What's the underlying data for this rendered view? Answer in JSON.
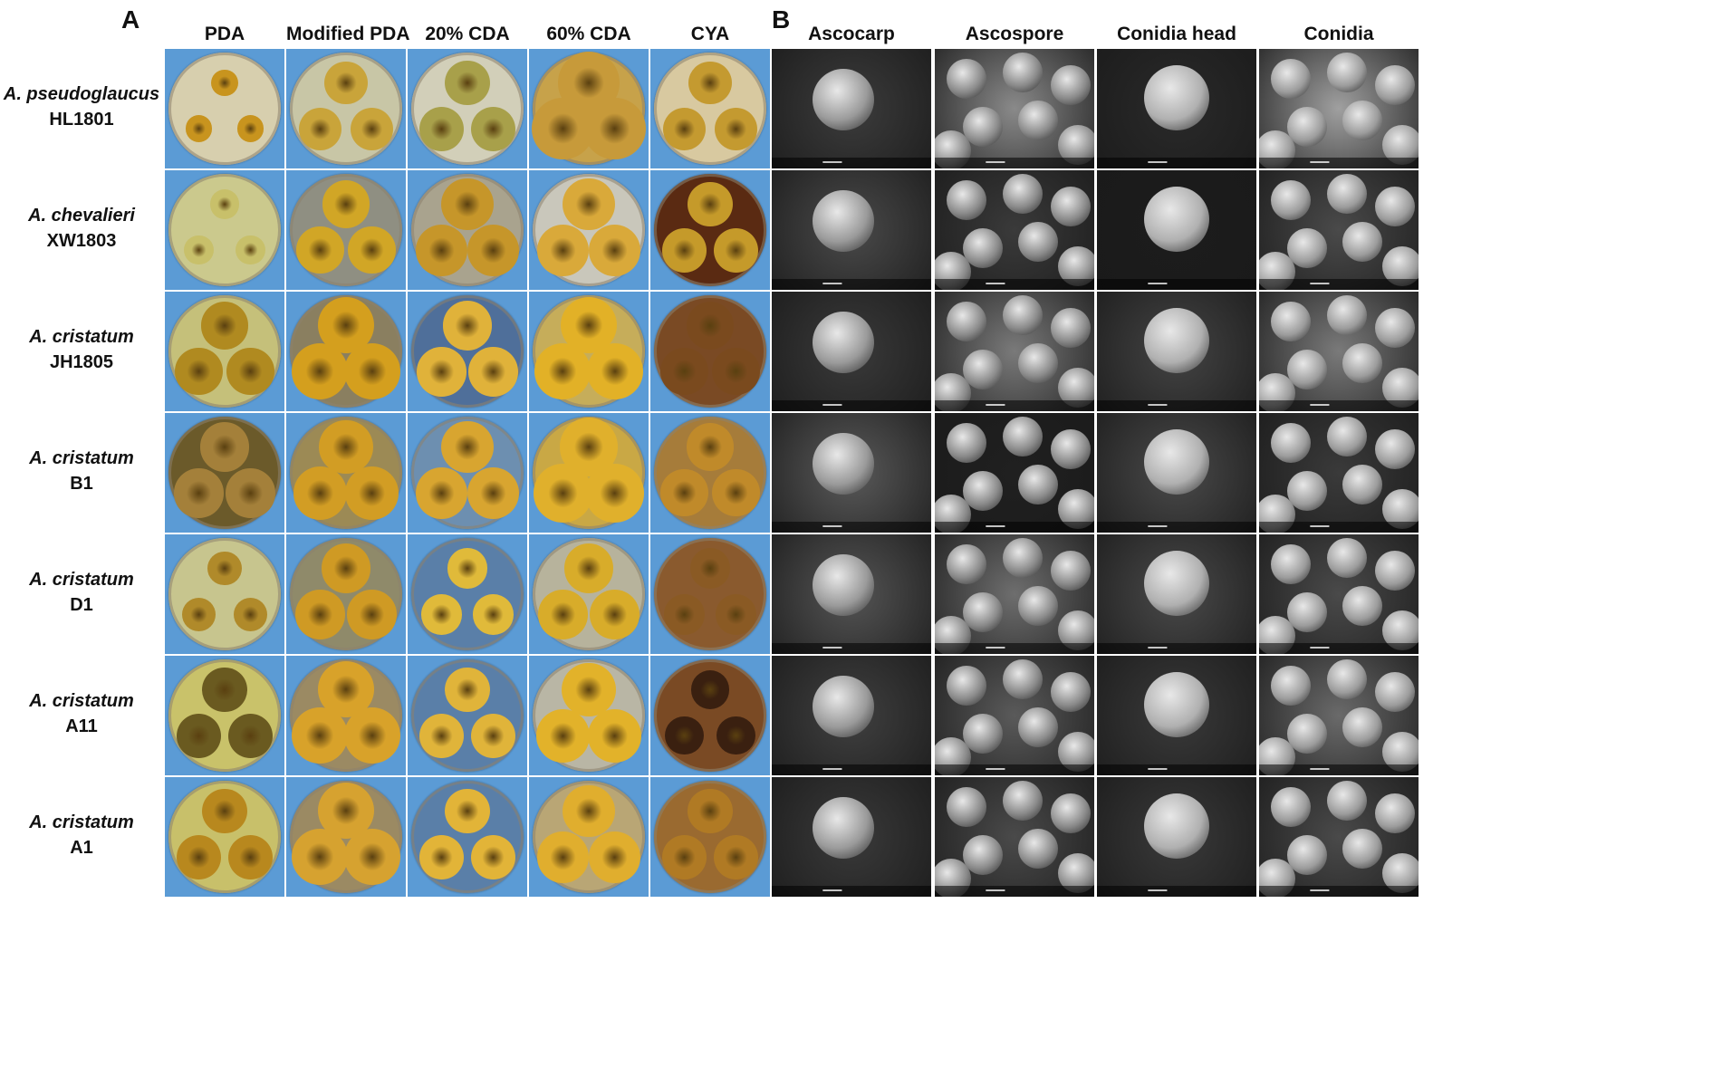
{
  "panel_a_letter": "A",
  "panel_b_letter": "B",
  "panel_a_columns": [
    "PDA",
    "Modified PDA",
    "20% CDA",
    "60% CDA",
    "CYA"
  ],
  "panel_b_columns": [
    "Ascocarp",
    "Ascospore",
    "Conidia head",
    "Conidia"
  ],
  "rows": [
    {
      "species": "A. pseudoglaucus",
      "strain": "HL1801"
    },
    {
      "species": "A. chevalieri",
      "strain": "XW1803"
    },
    {
      "species": "A. cristatum",
      "strain": "JH1805"
    },
    {
      "species": "A. cristatum",
      "strain": "B1"
    },
    {
      "species": "A. cristatum",
      "strain": "D1"
    },
    {
      "species": "A. cristatum",
      "strain": "A11"
    },
    {
      "species": "A. cristatum",
      "strain": "A1"
    }
  ],
  "colors": {
    "plate_background": "#5b9bd5",
    "medium_pda": "#c9c79a",
    "medium_cya": "#8a5a2a",
    "colony_yellow": "#d4a11e",
    "sem_gray": "#6e6e6e"
  }
}
